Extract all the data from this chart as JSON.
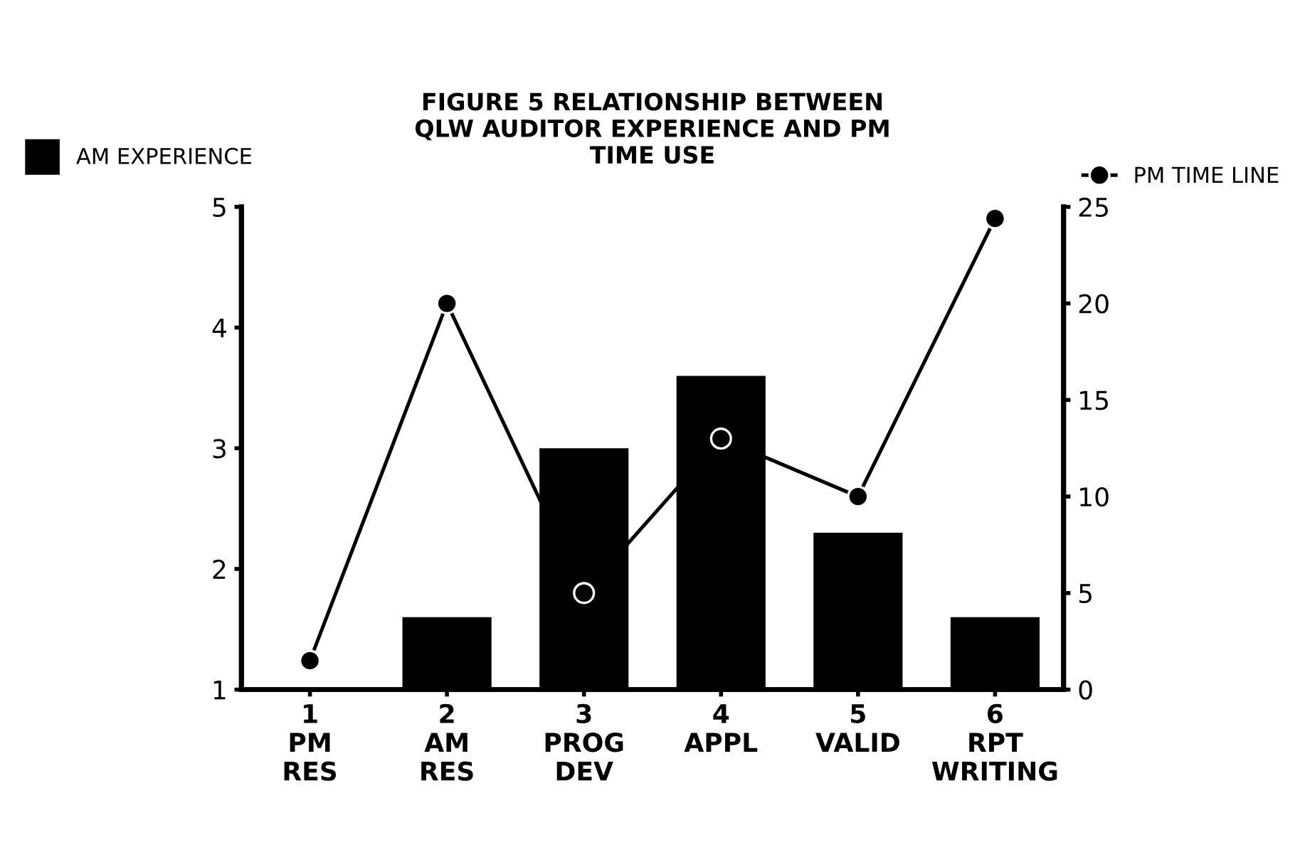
{
  "chart_data": {
    "type": "bar",
    "title": "FIGURE 5 RELATIONSHIP BETWEEN\nQLW AUDITOR EXPERIENCE AND PM\nTIME USE",
    "categories": [
      "1\nPM\nRES",
      "2\nAM\nRES",
      "3\nPROG\nDEV",
      "4\nAPPL",
      "5\nVALID",
      "6\nRPT\nWRITING"
    ],
    "series": [
      {
        "name": "AM EXPERIENCE",
        "color": "#000000",
        "values": [
          null,
          1.6,
          3.0,
          3.6,
          2.3,
          1.6
        ]
      },
      {
        "name": "PM TIME LINE",
        "type": "line",
        "axis": "y2",
        "color": "#000000",
        "values": [
          1.5,
          20,
          5,
          13,
          10,
          24.4
        ]
      }
    ],
    "ylim": [
      1,
      5
    ],
    "yticks": [
      1,
      2,
      3,
      4,
      5
    ],
    "y2lim": [
      0,
      25
    ],
    "y2ticks": [
      0,
      5,
      10,
      15,
      20,
      25
    ],
    "marker": "circle",
    "line_style": "solid",
    "grid": false,
    "legend": "top"
  }
}
